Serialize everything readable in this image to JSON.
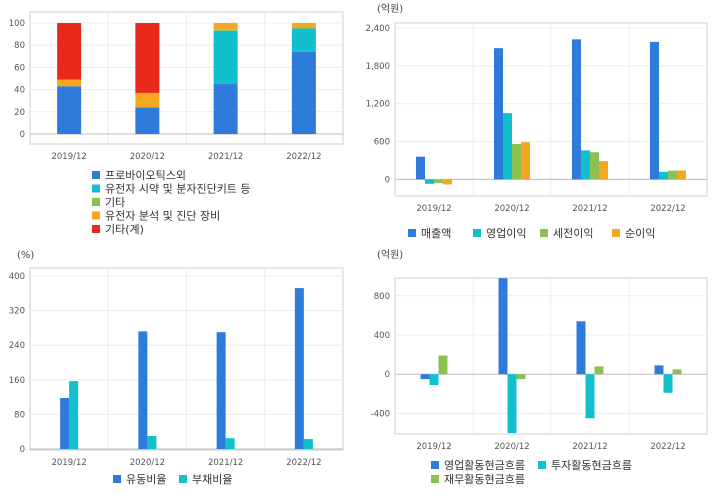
{
  "charts": [
    {
      "id": "c1",
      "chart_data": {
        "type": "bar",
        "stacked": true,
        "categories": [
          "2019/12",
          "2020/12",
          "2021/12",
          "2022/12"
        ],
        "ylim": [
          0,
          100
        ],
        "yticks": [
          0,
          20,
          40,
          60,
          80,
          100
        ],
        "grid": true,
        "legend_position": "bottom",
        "series": [
          {
            "name": "프로바이오틱스외",
            "color": "#2e7bdc",
            "values": [
              43,
              24,
              45,
              74
            ]
          },
          {
            "name": "유전자 시약 및 분자진단키트 등",
            "color": "#12bfcc",
            "values": [
              0,
              0,
              48,
              21
            ]
          },
          {
            "name": "기타",
            "color": "#8cc152",
            "values": [
              0,
              0,
              1,
              1
            ]
          },
          {
            "name": "유전자 분석 및 진단 장비",
            "color": "#f5a623",
            "values": [
              6,
              13,
              6,
              4
            ]
          },
          {
            "name": "기타(계)",
            "color": "#e8291c",
            "values": [
              51,
              63,
              0,
              0
            ]
          }
        ]
      }
    },
    {
      "id": "c2",
      "unit": "(억원)",
      "chart_data": {
        "type": "bar",
        "categories": [
          "2019/12",
          "2020/12",
          "2021/12",
          "2022/12"
        ],
        "ylim": [
          -200,
          2400
        ],
        "yticks": [
          0,
          600,
          1200,
          1800,
          2400
        ],
        "ytick_labels": [
          "0",
          "600",
          "1,200",
          "1,800",
          "2,400"
        ],
        "grid": true,
        "legend_position": "bottom",
        "series": [
          {
            "name": "매출액",
            "color": "#2e7bdc",
            "values": [
              360,
              2080,
              2220,
              2180
            ]
          },
          {
            "name": "영업이익",
            "color": "#12bfcc",
            "values": [
              -70,
              1050,
              460,
              120
            ]
          },
          {
            "name": "세전이익",
            "color": "#8cc152",
            "values": [
              -60,
              560,
              430,
              140
            ]
          },
          {
            "name": "순이익",
            "color": "#f5a623",
            "values": [
              -80,
              590,
              290,
              140
            ]
          }
        ]
      }
    },
    {
      "id": "c3",
      "unit": "(%)",
      "chart_data": {
        "type": "bar",
        "categories": [
          "2019/12",
          "2020/12",
          "2021/12",
          "2022/12"
        ],
        "ylim": [
          0,
          400
        ],
        "yticks": [
          0,
          80,
          160,
          240,
          320,
          400
        ],
        "grid": true,
        "legend_position": "bottom",
        "series": [
          {
            "name": "유동비율",
            "color": "#2e7bdc",
            "values": [
              118,
              272,
              270,
              372
            ]
          },
          {
            "name": "부채비율",
            "color": "#12bfcc",
            "values": [
              157,
              30,
              25,
              23
            ]
          }
        ]
      }
    },
    {
      "id": "c4",
      "unit": "(억원)",
      "chart_data": {
        "type": "bar",
        "categories": [
          "2019/12",
          "2020/12",
          "2021/12",
          "2022/12"
        ],
        "ylim": [
          -600,
          900
        ],
        "yticks": [
          -400,
          0,
          400,
          800
        ],
        "grid": true,
        "legend_position": "bottom",
        "series": [
          {
            "name": "영업활동현금흐름",
            "color": "#2e7bdc",
            "values": [
              -50,
              980,
              540,
              90
            ]
          },
          {
            "name": "투자활동현금흐름",
            "color": "#12bfcc",
            "values": [
              -110,
              -600,
              -450,
              -190
            ]
          },
          {
            "name": "재무활동현금흐름",
            "color": "#8cc152",
            "values": [
              190,
              -50,
              80,
              50
            ]
          }
        ]
      }
    }
  ]
}
